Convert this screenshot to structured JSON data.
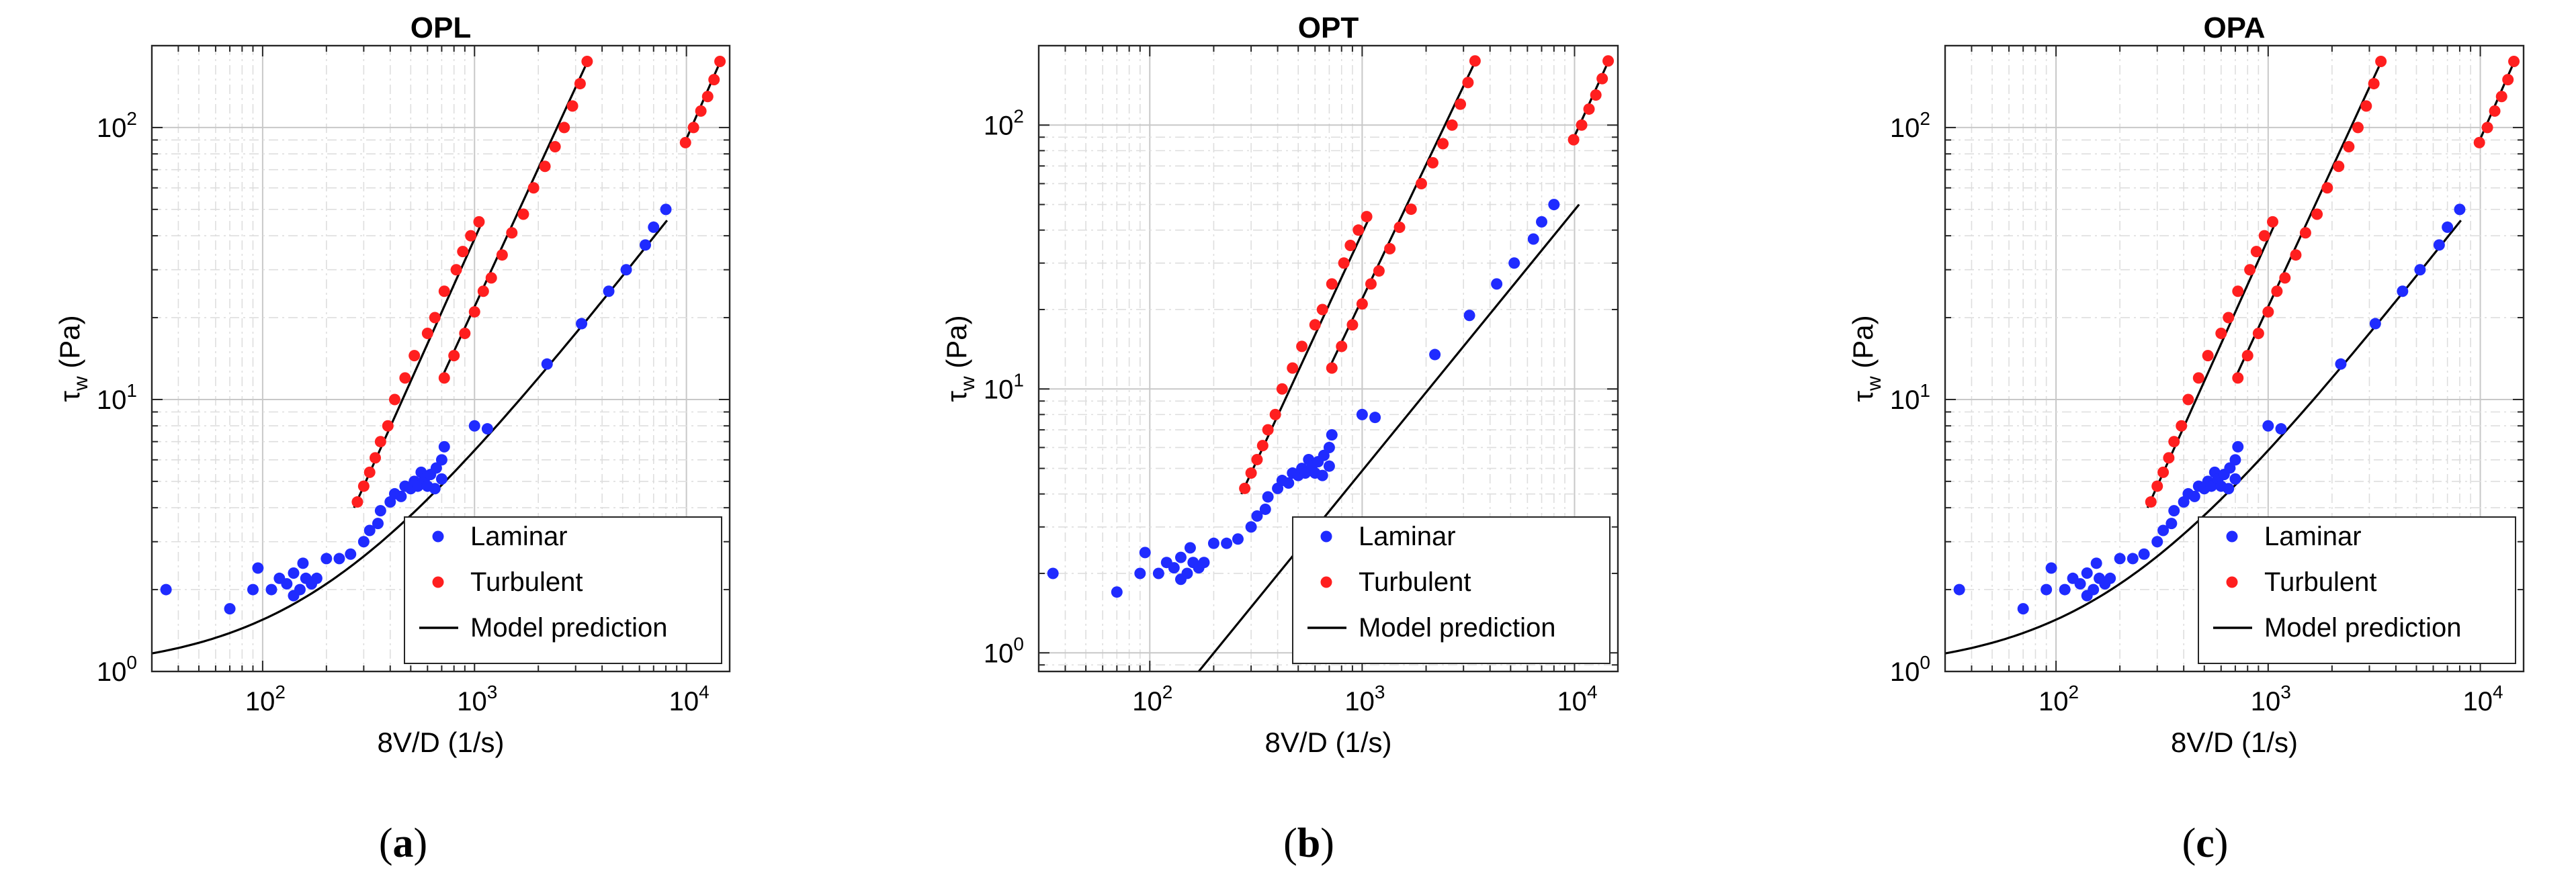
{
  "colors": {
    "laminar": "#1f2bff",
    "turbulent": "#ff1f1f",
    "model": "#000000",
    "grid_major": "#c8c8c8",
    "grid_minor": "#dedede",
    "axis": "#262626"
  },
  "chart_data": [
    {
      "type": "scatter",
      "title": "OPL",
      "caption_letter": "a",
      "xlabel": "8V/D (1/s)",
      "ylabel": "τ",
      "ylabel_sub": "w",
      "ylabel_unit": "(Pa)",
      "xscale": "log",
      "yscale": "log",
      "xlim": [
        30,
        16000
      ],
      "ylim": [
        1,
        200
      ],
      "xticks": [
        {
          "mantissa": "10",
          "exp": "2",
          "value": 100
        },
        {
          "mantissa": "10",
          "exp": "3",
          "value": 1000
        },
        {
          "mantissa": "10",
          "exp": "4",
          "value": 10000
        }
      ],
      "yticks": [
        {
          "mantissa": "10",
          "exp": "0",
          "value": 1
        },
        {
          "mantissa": "10",
          "exp": "1",
          "value": 10
        },
        {
          "mantissa": "10",
          "exp": "2",
          "value": 100
        }
      ],
      "grid": true,
      "legend": {
        "position": "bottom-right",
        "entries": [
          "Laminar",
          "Turbulent",
          "Model prediction"
        ]
      },
      "laminar": [
        [
          35,
          2.0
        ],
        [
          70,
          1.7
        ],
        [
          90,
          2.0
        ],
        [
          95,
          2.4
        ],
        [
          110,
          2.0
        ],
        [
          120,
          2.2
        ],
        [
          130,
          2.1
        ],
        [
          140,
          2.3
        ],
        [
          140,
          1.9
        ],
        [
          150,
          2.0
        ],
        [
          155,
          2.5
        ],
        [
          160,
          2.2
        ],
        [
          170,
          2.1
        ],
        [
          180,
          2.2
        ],
        [
          200,
          2.6
        ],
        [
          230,
          2.6
        ],
        [
          260,
          2.7
        ],
        [
          300,
          3.0
        ],
        [
          320,
          3.3
        ],
        [
          350,
          3.5
        ],
        [
          360,
          3.9
        ],
        [
          400,
          4.2
        ],
        [
          420,
          4.5
        ],
        [
          450,
          4.4
        ],
        [
          470,
          4.8
        ],
        [
          500,
          4.7
        ],
        [
          520,
          5.0
        ],
        [
          540,
          4.8
        ],
        [
          560,
          5.4
        ],
        [
          580,
          5.1
        ],
        [
          600,
          4.8
        ],
        [
          620,
          5.3
        ],
        [
          650,
          4.7
        ],
        [
          660,
          5.6
        ],
        [
          700,
          5.1
        ],
        [
          700,
          6.0
        ],
        [
          720,
          6.7
        ],
        [
          1000,
          8.0
        ],
        [
          1150,
          7.8
        ],
        [
          2200,
          13.5
        ],
        [
          3200,
          19
        ],
        [
          4300,
          25
        ],
        [
          5200,
          30
        ],
        [
          6400,
          37
        ],
        [
          7000,
          43
        ],
        [
          8000,
          50
        ]
      ],
      "turbulent_sets": [
        [
          [
            280,
            4.2
          ],
          [
            300,
            4.8
          ],
          [
            320,
            5.4
          ],
          [
            340,
            6.1
          ],
          [
            360,
            7.0
          ],
          [
            390,
            8.0
          ],
          [
            420,
            10.0
          ],
          [
            470,
            12.0
          ],
          [
            520,
            14.5
          ],
          [
            600,
            17.5
          ],
          [
            650,
            20.0
          ],
          [
            720,
            25.0
          ],
          [
            820,
            30.0
          ],
          [
            880,
            35.0
          ],
          [
            960,
            40.0
          ],
          [
            1050,
            45.0
          ]
        ],
        [
          [
            720,
            12.0
          ],
          [
            800,
            14.5
          ],
          [
            900,
            17.5
          ],
          [
            1000,
            21.0
          ],
          [
            1100,
            25.0
          ],
          [
            1200,
            28.0
          ],
          [
            1350,
            34.0
          ],
          [
            1500,
            41.0
          ],
          [
            1700,
            48.0
          ],
          [
            1900,
            60.0
          ],
          [
            2150,
            72.0
          ],
          [
            2400,
            85.0
          ],
          [
            2650,
            100.0
          ],
          [
            2900,
            120.0
          ],
          [
            3150,
            145.0
          ],
          [
            3400,
            175.0
          ]
        ],
        [
          [
            9900,
            88.0
          ],
          [
            10800,
            100.0
          ],
          [
            11700,
            115.0
          ],
          [
            12600,
            130.0
          ],
          [
            13500,
            150.0
          ],
          [
            14400,
            175.0
          ]
        ]
      ],
      "model_turbulent": [
        [
          [
            270,
            4.0
          ],
          [
            1100,
            46.0
          ]
        ],
        [
          [
            700,
            12.0
          ],
          [
            3450,
            178.0
          ]
        ],
        [
          [
            9700,
            86.0
          ],
          [
            14600,
            178.0
          ]
        ]
      ],
      "model_laminar": {
        "tau0": 1.0,
        "K": 0.0055,
        "n": 1.0,
        "xrange": [
          30,
          8100
        ]
      }
    },
    {
      "type": "scatter",
      "title": "OPT",
      "caption_letter": "b",
      "xlabel": "8V/D (1/s)",
      "ylabel": "τ",
      "ylabel_sub": "w",
      "ylabel_unit": "(Pa)",
      "xscale": "log",
      "yscale": "log",
      "xlim": [
        30,
        16000
      ],
      "ylim": [
        0.85,
        200
      ],
      "xticks": [
        {
          "mantissa": "10",
          "exp": "2",
          "value": 100
        },
        {
          "mantissa": "10",
          "exp": "3",
          "value": 1000
        },
        {
          "mantissa": "10",
          "exp": "4",
          "value": 10000
        }
      ],
      "yticks": [
        {
          "mantissa": "10",
          "exp": "0",
          "value": 1
        },
        {
          "mantissa": "10",
          "exp": "1",
          "value": 10
        },
        {
          "mantissa": "10",
          "exp": "2",
          "value": 100
        }
      ],
      "grid": true,
      "legend": {
        "position": "bottom-right",
        "entries": [
          "Laminar",
          "Turbulent",
          "Model prediction"
        ]
      },
      "laminar": [
        [
          35,
          2.0
        ],
        [
          70,
          1.7
        ],
        [
          90,
          2.0
        ],
        [
          95,
          2.4
        ],
        [
          110,
          2.0
        ],
        [
          120,
          2.2
        ],
        [
          130,
          2.1
        ],
        [
          140,
          2.3
        ],
        [
          140,
          1.9
        ],
        [
          150,
          2.0
        ],
        [
          155,
          2.5
        ],
        [
          160,
          2.2
        ],
        [
          170,
          2.1
        ],
        [
          180,
          2.2
        ],
        [
          200,
          2.6
        ],
        [
          230,
          2.6
        ],
        [
          260,
          2.7
        ],
        [
          300,
          3.0
        ],
        [
          320,
          3.3
        ],
        [
          350,
          3.5
        ],
        [
          360,
          3.9
        ],
        [
          400,
          4.2
        ],
        [
          420,
          4.5
        ],
        [
          450,
          4.4
        ],
        [
          470,
          4.8
        ],
        [
          500,
          4.7
        ],
        [
          520,
          5.0
        ],
        [
          540,
          4.8
        ],
        [
          560,
          5.4
        ],
        [
          580,
          5.1
        ],
        [
          600,
          4.8
        ],
        [
          620,
          5.3
        ],
        [
          650,
          4.7
        ],
        [
          660,
          5.6
        ],
        [
          700,
          5.1
        ],
        [
          700,
          6.0
        ],
        [
          720,
          6.7
        ],
        [
          1000,
          8.0
        ],
        [
          1150,
          7.8
        ],
        [
          2200,
          13.5
        ],
        [
          3200,
          19
        ],
        [
          4300,
          25
        ],
        [
          5200,
          30
        ],
        [
          6400,
          37
        ],
        [
          7000,
          43
        ],
        [
          8000,
          50
        ]
      ],
      "turbulent_sets": [
        [
          [
            280,
            4.2
          ],
          [
            300,
            4.8
          ],
          [
            320,
            5.4
          ],
          [
            340,
            6.1
          ],
          [
            360,
            7.0
          ],
          [
            390,
            8.0
          ],
          [
            420,
            10.0
          ],
          [
            470,
            12.0
          ],
          [
            520,
            14.5
          ],
          [
            600,
            17.5
          ],
          [
            650,
            20.0
          ],
          [
            720,
            25.0
          ],
          [
            820,
            30.0
          ],
          [
            880,
            35.0
          ],
          [
            960,
            40.0
          ],
          [
            1050,
            45.0
          ]
        ],
        [
          [
            720,
            12.0
          ],
          [
            800,
            14.5
          ],
          [
            900,
            17.5
          ],
          [
            1000,
            21.0
          ],
          [
            1100,
            25.0
          ],
          [
            1200,
            28.0
          ],
          [
            1350,
            34.0
          ],
          [
            1500,
            41.0
          ],
          [
            1700,
            48.0
          ],
          [
            1900,
            60.0
          ],
          [
            2150,
            72.0
          ],
          [
            2400,
            85.0
          ],
          [
            2650,
            100.0
          ],
          [
            2900,
            120.0
          ],
          [
            3150,
            145.0
          ],
          [
            3400,
            175.0
          ]
        ],
        [
          [
            9900,
            88.0
          ],
          [
            10800,
            100.0
          ],
          [
            11700,
            115.0
          ],
          [
            12600,
            130.0
          ],
          [
            13500,
            150.0
          ],
          [
            14400,
            175.0
          ]
        ]
      ],
      "model_turbulent": [
        [
          [
            270,
            4.0
          ],
          [
            1100,
            46.0
          ]
        ],
        [
          [
            700,
            12.0
          ],
          [
            3450,
            178.0
          ]
        ],
        [
          [
            9700,
            86.0
          ],
          [
            14600,
            178.0
          ]
        ]
      ],
      "model_line": [
        [
          170,
          0.85
        ],
        [
          10500,
          50.0
        ]
      ]
    },
    {
      "type": "scatter",
      "title": "OPA",
      "caption_letter": "c",
      "xlabel": "8V/D (1/s)",
      "ylabel": "τ",
      "ylabel_sub": "w",
      "ylabel_unit": "(Pa)",
      "xscale": "log",
      "yscale": "log",
      "xlim": [
        30,
        16000
      ],
      "ylim": [
        1,
        200
      ],
      "xticks": [
        {
          "mantissa": "10",
          "exp": "2",
          "value": 100
        },
        {
          "mantissa": "10",
          "exp": "3",
          "value": 1000
        },
        {
          "mantissa": "10",
          "exp": "4",
          "value": 10000
        }
      ],
      "yticks": [
        {
          "mantissa": "10",
          "exp": "0",
          "value": 1
        },
        {
          "mantissa": "10",
          "exp": "1",
          "value": 10
        },
        {
          "mantissa": "10",
          "exp": "2",
          "value": 100
        }
      ],
      "grid": true,
      "legend": {
        "position": "bottom-right",
        "entries": [
          "Laminar",
          "Turbulent",
          "Model prediction"
        ]
      },
      "laminar": [
        [
          35,
          2.0
        ],
        [
          70,
          1.7
        ],
        [
          90,
          2.0
        ],
        [
          95,
          2.4
        ],
        [
          110,
          2.0
        ],
        [
          120,
          2.2
        ],
        [
          130,
          2.1
        ],
        [
          140,
          2.3
        ],
        [
          140,
          1.9
        ],
        [
          150,
          2.0
        ],
        [
          155,
          2.5
        ],
        [
          160,
          2.2
        ],
        [
          170,
          2.1
        ],
        [
          180,
          2.2
        ],
        [
          200,
          2.6
        ],
        [
          230,
          2.6
        ],
        [
          260,
          2.7
        ],
        [
          300,
          3.0
        ],
        [
          320,
          3.3
        ],
        [
          350,
          3.5
        ],
        [
          360,
          3.9
        ],
        [
          400,
          4.2
        ],
        [
          420,
          4.5
        ],
        [
          450,
          4.4
        ],
        [
          470,
          4.8
        ],
        [
          500,
          4.7
        ],
        [
          520,
          5.0
        ],
        [
          540,
          4.8
        ],
        [
          560,
          5.4
        ],
        [
          580,
          5.1
        ],
        [
          600,
          4.8
        ],
        [
          620,
          5.3
        ],
        [
          650,
          4.7
        ],
        [
          660,
          5.6
        ],
        [
          700,
          5.1
        ],
        [
          700,
          6.0
        ],
        [
          720,
          6.7
        ],
        [
          1000,
          8.0
        ],
        [
          1150,
          7.8
        ],
        [
          2200,
          13.5
        ],
        [
          3200,
          19
        ],
        [
          4300,
          25
        ],
        [
          5200,
          30
        ],
        [
          6400,
          37
        ],
        [
          7000,
          43
        ],
        [
          8000,
          50
        ]
      ],
      "turbulent_sets": [
        [
          [
            280,
            4.2
          ],
          [
            300,
            4.8
          ],
          [
            320,
            5.4
          ],
          [
            340,
            6.1
          ],
          [
            360,
            7.0
          ],
          [
            390,
            8.0
          ],
          [
            420,
            10.0
          ],
          [
            470,
            12.0
          ],
          [
            520,
            14.5
          ],
          [
            600,
            17.5
          ],
          [
            650,
            20.0
          ],
          [
            720,
            25.0
          ],
          [
            820,
            30.0
          ],
          [
            880,
            35.0
          ],
          [
            960,
            40.0
          ],
          [
            1050,
            45.0
          ]
        ],
        [
          [
            720,
            12.0
          ],
          [
            800,
            14.5
          ],
          [
            900,
            17.5
          ],
          [
            1000,
            21.0
          ],
          [
            1100,
            25.0
          ],
          [
            1200,
            28.0
          ],
          [
            1350,
            34.0
          ],
          [
            1500,
            41.0
          ],
          [
            1700,
            48.0
          ],
          [
            1900,
            60.0
          ],
          [
            2150,
            72.0
          ],
          [
            2400,
            85.0
          ],
          [
            2650,
            100.0
          ],
          [
            2900,
            120.0
          ],
          [
            3150,
            145.0
          ],
          [
            3400,
            175.0
          ]
        ],
        [
          [
            9900,
            88.0
          ],
          [
            10800,
            100.0
          ],
          [
            11700,
            115.0
          ],
          [
            12600,
            130.0
          ],
          [
            13500,
            150.0
          ],
          [
            14400,
            175.0
          ]
        ]
      ],
      "model_turbulent": [
        [
          [
            270,
            4.0
          ],
          [
            1100,
            46.0
          ]
        ],
        [
          [
            700,
            12.0
          ],
          [
            3450,
            178.0
          ]
        ],
        [
          [
            9700,
            86.0
          ],
          [
            14600,
            178.0
          ]
        ]
      ],
      "model_laminar": {
        "tau0": 1.0,
        "K": 0.0055,
        "n": 1.0,
        "xrange": [
          30,
          8100
        ]
      }
    }
  ]
}
